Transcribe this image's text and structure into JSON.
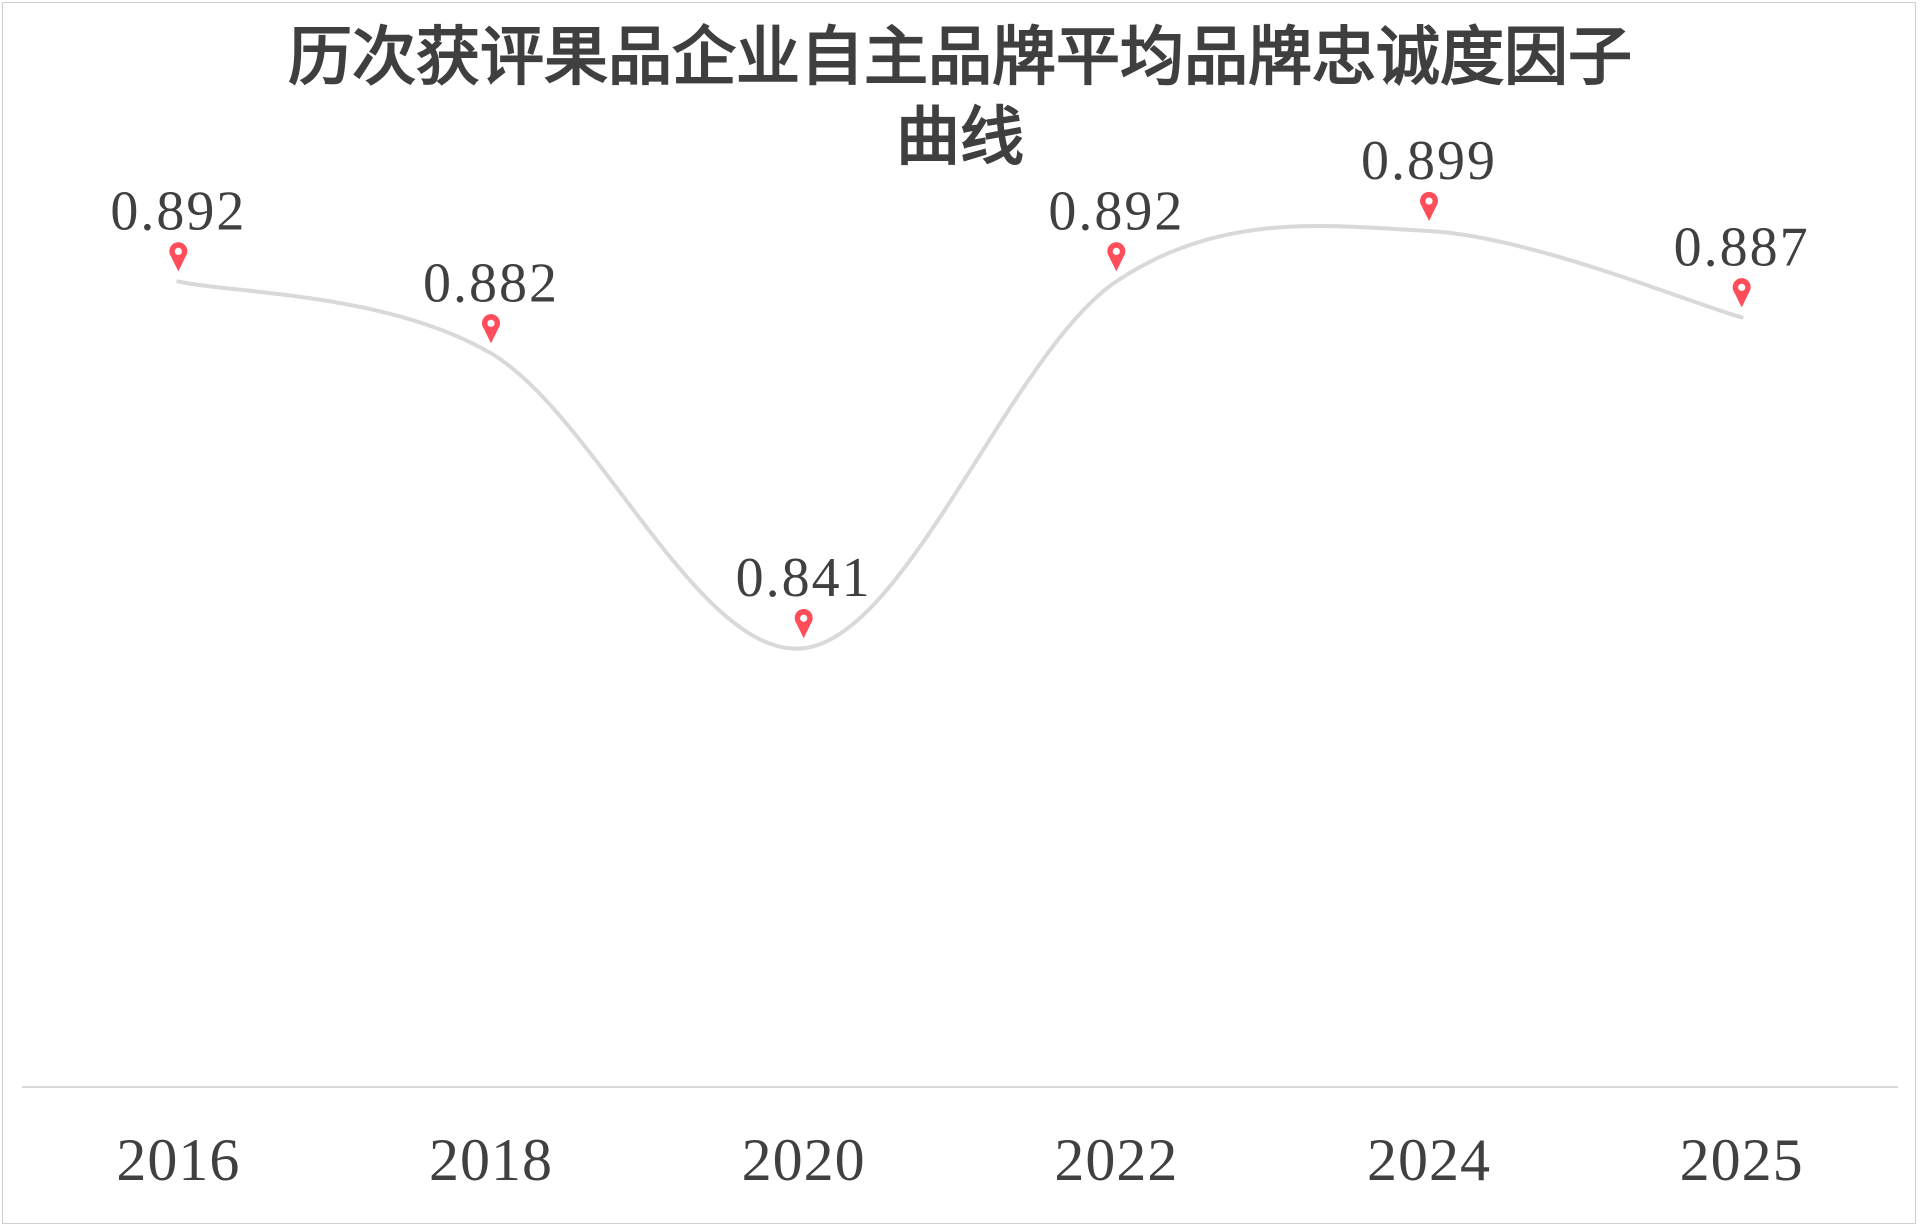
{
  "chart_data": {
    "type": "line",
    "title_lines": [
      "历次获评果品企业自主品牌平均品牌忠诚度因子",
      "曲线"
    ],
    "categories": [
      "2016",
      "2018",
      "2020",
      "2022",
      "2024",
      "2025"
    ],
    "values": [
      0.892,
      0.882,
      0.841,
      0.892,
      0.899,
      0.887
    ],
    "data_labels": [
      "0.892",
      "0.882",
      "0.841",
      "0.892",
      "0.899",
      "0.887"
    ],
    "ylim": [
      0.78,
      0.92
    ],
    "grid": false,
    "legend": "none",
    "smooth": true,
    "marker": "map-pin-icon"
  },
  "colors": {
    "line": "#d9d9d9",
    "marker": "#ff4d5a",
    "axis": "#d9d9d9",
    "text": "#404040",
    "title": "#3f3f3f"
  }
}
